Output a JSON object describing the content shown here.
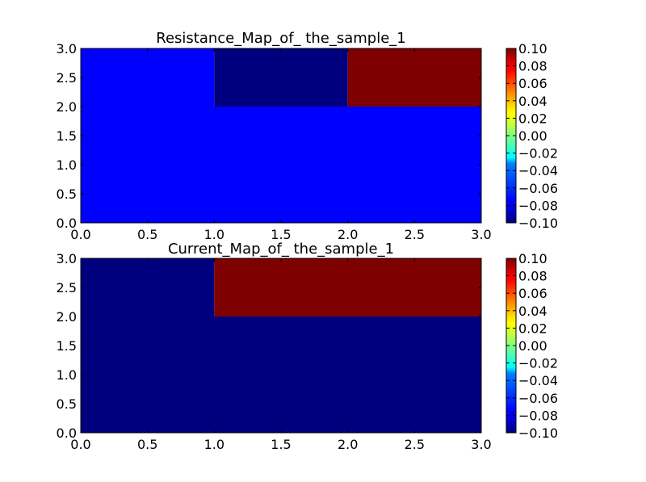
{
  "chart_data": [
    {
      "type": "heatmap",
      "title": "Resistance_Map_of_ the_sample_1",
      "xlabel": "",
      "ylabel": "",
      "xlim": [
        0,
        3
      ],
      "ylim": [
        0,
        3
      ],
      "xticks": [
        "0.0",
        "0.5",
        "1.0",
        "1.5",
        "2.0",
        "2.5",
        "3.0"
      ],
      "yticks": [
        "0.0",
        "0.5",
        "1.0",
        "1.5",
        "2.0",
        "2.5",
        "3.0"
      ],
      "cells": [
        {
          "x0": 0,
          "x1": 3,
          "y0": 0,
          "y1": 2,
          "value": -0.08,
          "color": "#0000ff"
        },
        {
          "x0": 0,
          "x1": 1,
          "y0": 2,
          "y1": 3,
          "value": -0.08,
          "color": "#0000ff"
        },
        {
          "x0": 1,
          "x1": 2,
          "y0": 2,
          "y1": 3,
          "value": -0.1,
          "color": "#00007f"
        },
        {
          "x0": 2,
          "x1": 3,
          "y0": 2,
          "y1": 3,
          "value": 0.1,
          "color": "#7f0000"
        }
      ],
      "colorbar": {
        "colormap": "jet",
        "min": -0.1,
        "max": 0.1,
        "ticks": [
          "0.10",
          "0.08",
          "0.06",
          "0.04",
          "0.02",
          "0.00",
          "−0.02",
          "−0.04",
          "−0.06",
          "−0.08",
          "−0.10"
        ]
      },
      "grid": false
    },
    {
      "type": "heatmap",
      "title": "Current_Map_of_ the_sample_1",
      "xlabel": "",
      "ylabel": "",
      "xlim": [
        0,
        3
      ],
      "ylim": [
        0,
        3
      ],
      "xticks": [
        "0.0",
        "0.5",
        "1.0",
        "1.5",
        "2.0",
        "2.5",
        "3.0"
      ],
      "yticks": [
        "0.0",
        "0.5",
        "1.0",
        "1.5",
        "2.0",
        "2.5",
        "3.0"
      ],
      "cells": [
        {
          "x0": 0,
          "x1": 3,
          "y0": 0,
          "y1": 2,
          "value": -0.1,
          "color": "#00007f"
        },
        {
          "x0": 0,
          "x1": 1,
          "y0": 2,
          "y1": 3,
          "value": -0.1,
          "color": "#00007f"
        },
        {
          "x0": 1,
          "x1": 3,
          "y0": 2,
          "y1": 3,
          "value": 0.1,
          "color": "#7f0000"
        }
      ],
      "colorbar": {
        "colormap": "jet",
        "min": -0.1,
        "max": 0.1,
        "ticks": [
          "0.10",
          "0.08",
          "0.06",
          "0.04",
          "0.02",
          "0.00",
          "−0.02",
          "−0.04",
          "−0.06",
          "−0.08",
          "−0.10"
        ]
      },
      "grid": false
    }
  ]
}
